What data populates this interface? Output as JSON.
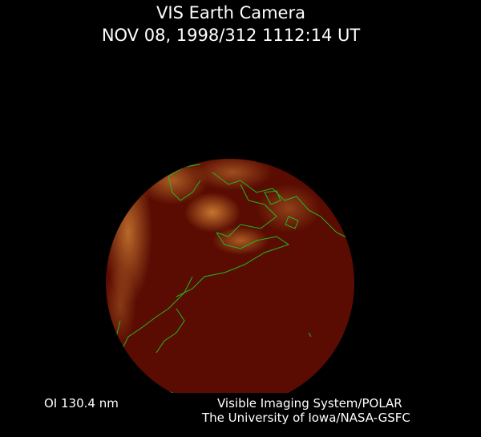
{
  "header": {
    "title": "VIS Earth Camera",
    "timestamp": "NOV 08, 1998/312 1112:14 UT"
  },
  "footer": {
    "wavelength": "OI  130.4 nm",
    "instrument": "Visible Imaging System/POLAR",
    "organization": "The University of Iowa/NASA-GSFC"
  },
  "colors": {
    "background": "#000000",
    "earth_disc": "#5a0c02",
    "aurora": "#e8902a",
    "coastlines": "#22b822"
  }
}
